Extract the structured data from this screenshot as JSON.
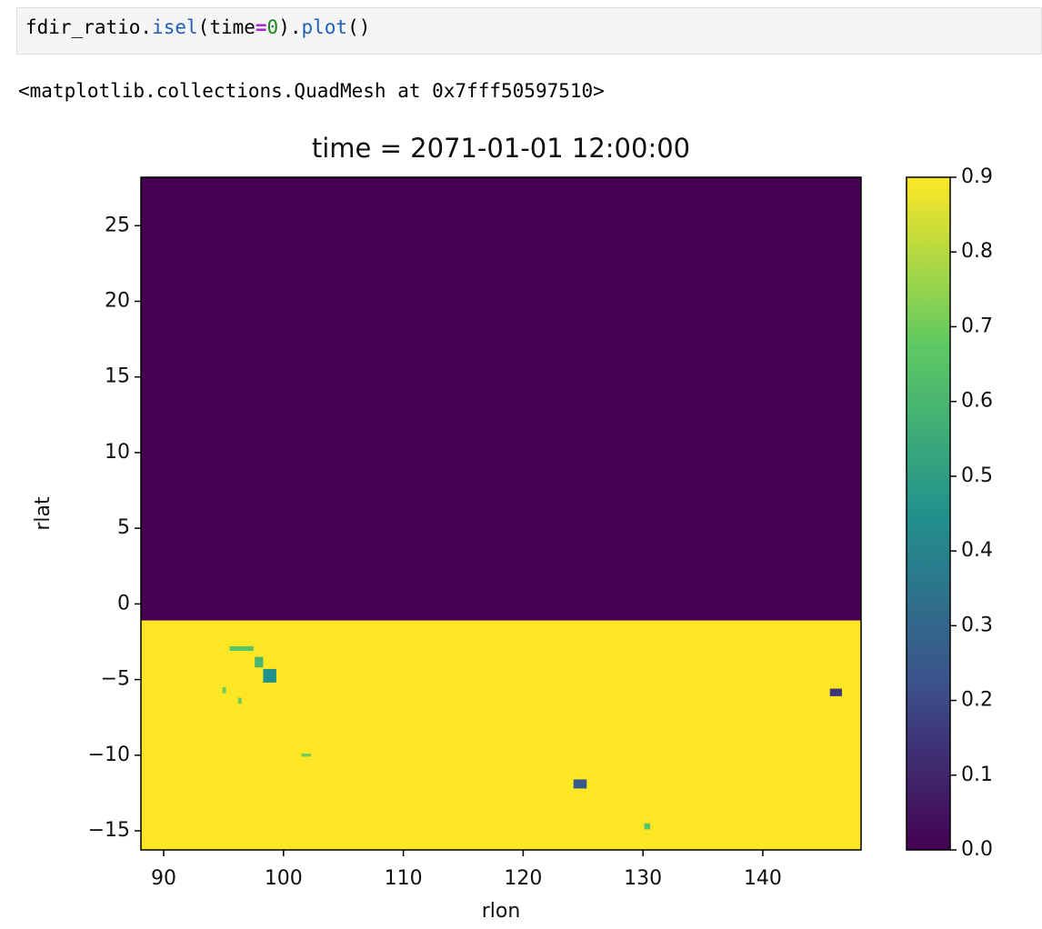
{
  "cell": {
    "code_tokens": [
      "fdir_ratio.",
      "isel",
      "(",
      "time",
      "=",
      "0",
      ").",
      "plot",
      "()"
    ]
  },
  "output": "<matplotlib.collections.QuadMesh at 0x7fff50597510>",
  "chart_data": {
    "type": "mesh",
    "title": "time = 2071-01-01 12:00:00",
    "x_label": "rlon",
    "y_label": "rlat",
    "xlim": [
      88.1,
      148.2
    ],
    "ylim": [
      -16.26,
      28.2
    ],
    "xticks": [
      90,
      100,
      110,
      120,
      130,
      140
    ],
    "yticks": [
      {
        "value": -15,
        "label": "−15"
      },
      {
        "value": -10,
        "label": "−10"
      },
      {
        "value": -5,
        "label": "−5"
      },
      0,
      5,
      10,
      15,
      20,
      25
    ],
    "clim": [
      0,
      0.9
    ],
    "colorbar_ticks": [
      {
        "value": 0,
        "label": "0.0"
      },
      0.1,
      0.2,
      0.3,
      0.4,
      0.5,
      0.6,
      0.7,
      0.8,
      0.9
    ],
    "cells": [
      {
        "x": [
          88.1,
          148.2
        ],
        "y": [
          -1.1,
          28.2
        ],
        "value": 0
      },
      {
        "x": [
          88.1,
          148.2
        ],
        "y": [
          -16.26,
          -1.1
        ],
        "value": 0.9
      },
      {
        "x": [
          95.5,
          97.5
        ],
        "y": [
          -3.1,
          -2.8
        ],
        "value": 0.65
      },
      {
        "x": [
          98.3,
          99.4
        ],
        "y": [
          -5.2,
          -4.3
        ],
        "value": 0.45
      },
      {
        "x": [
          97.6,
          98.3
        ],
        "y": [
          -4.2,
          -3.5
        ],
        "value": 0.6
      },
      {
        "x": [
          101.5,
          102.3
        ],
        "y": [
          -10.1,
          -9.9
        ],
        "value": 0.7
      },
      {
        "x": [
          94.9,
          95.2
        ],
        "y": [
          -5.9,
          -5.5
        ],
        "value": 0.7
      },
      {
        "x": [
          96.2,
          96.5
        ],
        "y": [
          -6.6,
          -6.2
        ],
        "value": 0.7
      },
      {
        "x": [
          124.2,
          125.3
        ],
        "y": [
          -12.2,
          -11.6
        ],
        "value": 0.25
      },
      {
        "x": [
          130.1,
          130.6
        ],
        "y": [
          -14.9,
          -14.5
        ],
        "value": 0.65
      },
      {
        "x": [
          145.6,
          146.6
        ],
        "y": [
          -6.1,
          -5.6
        ],
        "value": 0.15
      }
    ]
  }
}
